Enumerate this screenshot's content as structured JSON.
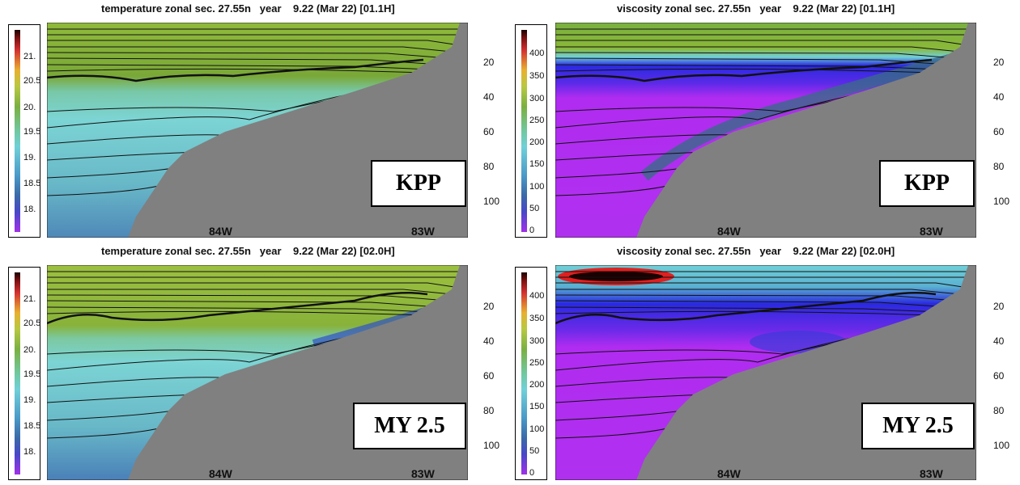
{
  "panels": [
    {
      "title": "temperature zonal sec. 27.55n   year    9.22 (Mar 22) [01.1H]",
      "variable": "temperature",
      "model_label": "KPP",
      "colorbar_ticks": [
        "21.",
        "20.5",
        "20.",
        "19.5",
        "19.",
        "18.5",
        "18."
      ],
      "depth_ticks": [
        "20",
        "40",
        "60",
        "80",
        "100"
      ],
      "lon_ticks": [
        "84W",
        "83W"
      ]
    },
    {
      "title": "viscosity zonal sec. 27.55n   year    9.22 (Mar 22) [01.1H]",
      "variable": "viscosity",
      "model_label": "KPP",
      "colorbar_ticks": [
        "400",
        "350",
        "300",
        "250",
        "200",
        "150",
        "100",
        "50",
        "0"
      ],
      "depth_ticks": [
        "20",
        "40",
        "60",
        "80",
        "100"
      ],
      "lon_ticks": [
        "84W",
        "83W"
      ]
    },
    {
      "title": "temperature zonal sec. 27.55n   year    9.22 (Mar 22) [02.0H]",
      "variable": "temperature",
      "model_label": "MY 2.5",
      "colorbar_ticks": [
        "21.",
        "20.5",
        "20.",
        "19.5",
        "19.",
        "18.5",
        "18."
      ],
      "depth_ticks": [
        "20",
        "40",
        "60",
        "80",
        "100"
      ],
      "lon_ticks": [
        "84W",
        "83W"
      ]
    },
    {
      "title": "viscosity zonal sec. 27.55n   year    9.22 (Mar 22) [02.0H]",
      "variable": "viscosity",
      "model_label": "MY 2.5",
      "colorbar_ticks": [
        "400",
        "350",
        "300",
        "250",
        "200",
        "150",
        "100",
        "50",
        "0"
      ],
      "depth_ticks": [
        "20",
        "40",
        "60",
        "80",
        "100"
      ],
      "lon_ticks": [
        "84W",
        "83W"
      ]
    }
  ],
  "colors": {
    "land": "#808080",
    "temp_warm": "#8cb83a",
    "temp_mid": "#7ccfd0",
    "temp_cold": "#3f6fa8",
    "visc_low": "#b02cf0",
    "visc_mid": "#2a2ae0",
    "visc_high": "#e02020"
  }
}
